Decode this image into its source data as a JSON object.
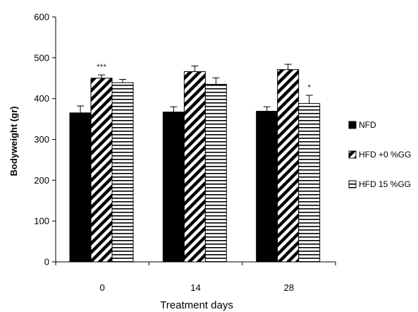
{
  "chart_data": {
    "type": "bar",
    "title": "",
    "xlabel": "Treatment days",
    "ylabel": "Bodyweight (gr)",
    "ylim": [
      0,
      600
    ],
    "yticks": [
      0,
      100,
      200,
      300,
      400,
      500,
      600
    ],
    "categories": [
      "0",
      "14",
      "28"
    ],
    "series": [
      {
        "name": "NFD",
        "pattern": "solid",
        "color": "#000000",
        "values": [
          365,
          367,
          369
        ],
        "errors": [
          17,
          13,
          11
        ]
      },
      {
        "name": "HFD +0 %GG",
        "pattern": "diagonal",
        "color": "#000000",
        "values": [
          450,
          466,
          471
        ],
        "errors": [
          8,
          14,
          13
        ]
      },
      {
        "name": "HFD 15 %GG",
        "pattern": "horizontal",
        "color": "#000000",
        "values": [
          439,
          435,
          388
        ],
        "errors": [
          8,
          16,
          20
        ]
      }
    ],
    "annotations": [
      {
        "category": "0",
        "series": "HFD +0 %GG",
        "text": "***"
      },
      {
        "category": "28",
        "series": "HFD 15 %GG",
        "text": "*"
      }
    ],
    "grid": false,
    "legend_position": "right"
  }
}
